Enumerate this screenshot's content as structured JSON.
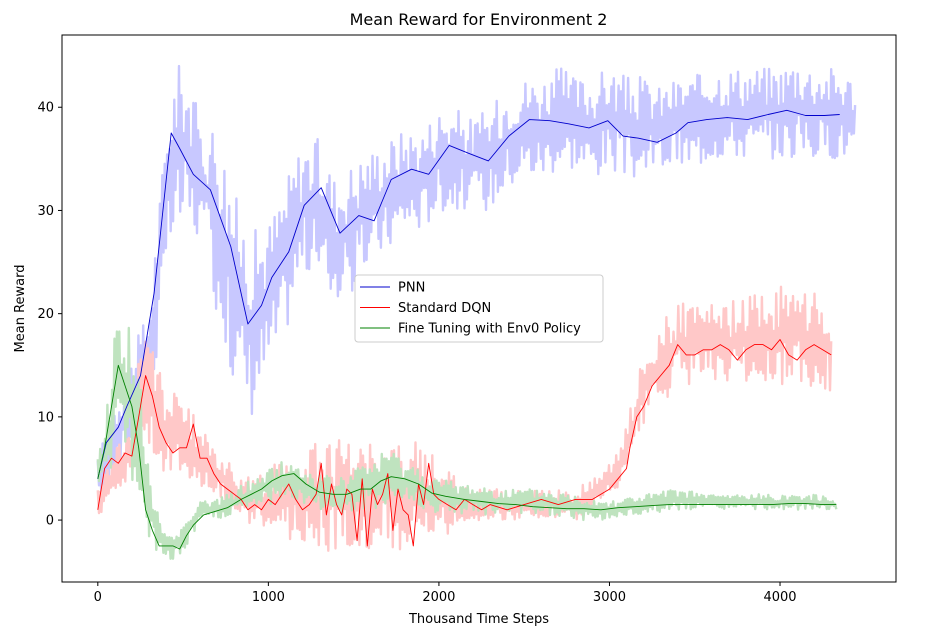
{
  "chart_data": {
    "type": "line",
    "title": "Mean Reward for Environment 2",
    "xlabel": "Thousand Time Steps",
    "ylabel": "Mean Reward",
    "xlim": [
      -210,
      4680
    ],
    "ylim": [
      -6,
      47
    ],
    "xticks": [
      0,
      1000,
      2000,
      3000,
      4000
    ],
    "yticks": [
      0,
      10,
      20,
      30,
      40
    ],
    "grid": false,
    "legend_position": "center-right",
    "series": [
      {
        "name": "PNN",
        "color": "#0000cc",
        "band_color": "#c8c8ff",
        "x": [
          0,
          50,
          120,
          170,
          250,
          330,
          430,
          480,
          560,
          660,
          780,
          880,
          960,
          1020,
          1120,
          1210,
          1310,
          1420,
          1530,
          1620,
          1720,
          1840,
          1940,
          2060,
          2180,
          2290,
          2410,
          2530,
          2650,
          2760,
          2880,
          2990,
          3080,
          3170,
          3280,
          3390,
          3460,
          3570,
          3690,
          3810,
          3930,
          4040,
          4150,
          4260,
          4350
        ],
        "y": [
          4,
          7.5,
          9,
          11,
          14,
          22,
          37.5,
          36,
          33.5,
          32,
          26.5,
          19,
          20.8,
          23.5,
          26,
          30.5,
          32.2,
          27.8,
          29.5,
          29,
          33,
          34,
          33.5,
          36.3,
          35.5,
          34.8,
          37.2,
          38.8,
          38.7,
          38.4,
          38,
          38.7,
          37.2,
          37,
          36.6,
          37.5,
          38.5,
          38.8,
          39,
          38.8,
          39.3,
          39.7,
          39.2,
          39.2,
          39.3
        ],
        "band_x": [
          0,
          100,
          200,
          300,
          430,
          500,
          600,
          700,
          800,
          900,
          1000,
          1100,
          1200,
          1300,
          1400,
          1500,
          1600,
          1700,
          1800,
          1900,
          2000,
          2100,
          2200,
          2300,
          2400,
          2500,
          2600,
          2700,
          2800,
          2900,
          3000,
          3100,
          3200,
          3300,
          3400,
          3500,
          3600,
          3700,
          3800,
          3900,
          4000,
          4100,
          4200,
          4300,
          4440
        ],
        "band_low": [
          1,
          4,
          7,
          10,
          26,
          28,
          27,
          20,
          13,
          10,
          14,
          18,
          24,
          23,
          21,
          22,
          25,
          26,
          28,
          28,
          30,
          30,
          30,
          30,
          32,
          33,
          33,
          34,
          34,
          33,
          34,
          33,
          33,
          34,
          34,
          34,
          35,
          35,
          35,
          35,
          35,
          35,
          35,
          35,
          35
        ],
        "band_high": [
          6,
          12,
          16,
          21,
          43,
          45,
          39,
          39,
          32,
          28,
          29,
          33,
          37,
          37,
          33,
          35,
          36,
          37,
          38,
          38,
          40,
          40,
          39,
          40,
          42,
          43,
          43,
          44,
          43,
          43,
          44,
          43,
          43,
          42,
          43,
          43,
          44,
          44,
          44,
          44,
          44,
          45,
          44,
          44,
          43
        ]
      },
      {
        "name": "Standard DQN",
        "color": "#ff0000",
        "band_color": "#ffc8c8",
        "x": [
          0,
          40,
          80,
          120,
          160,
          200,
          240,
          280,
          320,
          360,
          400,
          440,
          480,
          520,
          560,
          600,
          640,
          680,
          720,
          760,
          800,
          840,
          880,
          920,
          960,
          1000,
          1040,
          1080,
          1120,
          1160,
          1200,
          1240,
          1280,
          1310,
          1340,
          1370,
          1400,
          1430,
          1460,
          1490,
          1520,
          1550,
          1580,
          1610,
          1640,
          1670,
          1700,
          1730,
          1760,
          1790,
          1820,
          1850,
          1880,
          1910,
          1940,
          1970,
          2000,
          2050,
          2100,
          2150,
          2200,
          2250,
          2300,
          2400,
          2500,
          2600,
          2700,
          2800,
          2900,
          2950,
          3000,
          3050,
          3100,
          3120,
          3160,
          3200,
          3250,
          3300,
          3350,
          3400,
          3450,
          3500,
          3550,
          3600,
          3650,
          3700,
          3750,
          3800,
          3850,
          3900,
          3950,
          4000,
          4050,
          4100,
          4150,
          4200,
          4250,
          4300
        ],
        "y": [
          1,
          5,
          6,
          5.5,
          6.5,
          6.2,
          10,
          14,
          12,
          9,
          7.5,
          6.5,
          7,
          7,
          9.3,
          6,
          6,
          4.5,
          3.5,
          3,
          2.5,
          2,
          1,
          1.5,
          1,
          2,
          1.5,
          2.5,
          3.5,
          2,
          1,
          1.5,
          2.5,
          5.5,
          0.5,
          3.5,
          1.5,
          0.5,
          3,
          2.5,
          -2,
          4,
          -2.5,
          3,
          1.5,
          2.5,
          4.5,
          -1,
          3,
          1,
          0.5,
          -2.5,
          3.5,
          1.5,
          5.5,
          2.5,
          2,
          1.5,
          1,
          2,
          1.5,
          1,
          1.5,
          1,
          1.5,
          2,
          1.5,
          2,
          2,
          2.5,
          3,
          4,
          5,
          7,
          10,
          11,
          13,
          14,
          15,
          17,
          16,
          16,
          16.5,
          16.5,
          17,
          16.5,
          15.5,
          16.5,
          17,
          17,
          16.5,
          17.5,
          16,
          15.5,
          16.5,
          17,
          16.5,
          16
        ],
        "band_x": [
          0,
          100,
          200,
          240,
          300,
          400,
          500,
          600,
          700,
          800,
          900,
          1000,
          1100,
          1200,
          1300,
          1400,
          1500,
          1600,
          1700,
          1800,
          1900,
          2000,
          2100,
          2200,
          2300,
          2400,
          2500,
          2600,
          2700,
          2800,
          2900,
          3000,
          3100,
          3200,
          3300,
          3400,
          3500,
          3600,
          3700,
          3800,
          3900,
          4000,
          4100,
          4200,
          4300
        ],
        "band_low": [
          0,
          3,
          4,
          6,
          7,
          4,
          4,
          3,
          2,
          1,
          -1,
          -1,
          -2,
          -2,
          -3,
          -3,
          -3,
          -3,
          -3,
          -3,
          -3,
          -2,
          -1,
          0,
          0,
          0,
          0,
          0,
          0,
          0,
          1,
          2,
          4,
          9,
          11,
          13,
          13,
          13,
          13,
          13,
          13,
          13,
          13,
          13,
          12
        ],
        "band_high": [
          3,
          7,
          9,
          16,
          19,
          13,
          12,
          9,
          7,
          5,
          4,
          5,
          6,
          6,
          8,
          8,
          8,
          8,
          8,
          7,
          8,
          6,
          4,
          3,
          3,
          3,
          3,
          3,
          3,
          3,
          4,
          6,
          9,
          17,
          19,
          21,
          21,
          21,
          21,
          22,
          22,
          23,
          23,
          22,
          21
        ]
      },
      {
        "name": "Fine Tuning with Env0 Policy",
        "color": "#008000",
        "band_color": "#bfe3bf",
        "x": [
          0,
          40,
          80,
          120,
          160,
          200,
          240,
          280,
          320,
          360,
          400,
          440,
          480,
          520,
          560,
          620,
          680,
          760,
          840,
          900,
          960,
          1020,
          1080,
          1150,
          1220,
          1300,
          1380,
          1460,
          1540,
          1600,
          1660,
          1720,
          1800,
          1880,
          1960,
          2040,
          2150,
          2250,
          2350,
          2450,
          2550,
          2650,
          2750,
          2850,
          2950,
          3050,
          3150,
          3250,
          3350,
          3450,
          3550,
          3650,
          3750,
          3850,
          3950,
          4050,
          4150,
          4250,
          4330
        ],
        "y": [
          4,
          7,
          11,
          15,
          13,
          11,
          7,
          1,
          -1,
          -2.5,
          -2.5,
          -2.5,
          -2.8,
          -1.5,
          -0.5,
          0.5,
          0.8,
          1.2,
          2,
          2.5,
          3,
          3.8,
          4.3,
          4.5,
          3.5,
          2.7,
          2.5,
          2.5,
          3,
          3,
          3.8,
          4.2,
          4,
          3.5,
          2.6,
          2.3,
          2,
          1.8,
          1.6,
          1.5,
          1.3,
          1.2,
          1.1,
          1.1,
          1.0,
          1.2,
          1.3,
          1.4,
          1.5,
          1.5,
          1.5,
          1.5,
          1.5,
          1.5,
          1.5,
          1.6,
          1.6,
          1.5,
          1.5
        ],
        "band_x": [
          0,
          60,
          120,
          180,
          240,
          300,
          360,
          420,
          480,
          540,
          600,
          700,
          800,
          900,
          1000,
          1100,
          1200,
          1300,
          1400,
          1500,
          1600,
          1700,
          1800,
          1900,
          2000,
          2200,
          2400,
          2600,
          2800,
          3000,
          3200,
          3400,
          3600,
          3800,
          4000,
          4200,
          4330
        ],
        "band_low": [
          2,
          4,
          7,
          5,
          1,
          -3,
          -3.5,
          -4,
          -3.5,
          -2,
          0,
          0,
          0.5,
          1,
          1.5,
          2,
          1.5,
          1,
          0.5,
          0.5,
          1,
          1.5,
          1.5,
          1,
          0.5,
          0.5,
          0.5,
          0.5,
          0,
          0,
          0.5,
          1,
          1,
          1,
          1,
          1,
          1
        ],
        "band_high": [
          6,
          12,
          22,
          20,
          15,
          5,
          0,
          -1,
          -1,
          1,
          2,
          2,
          3,
          4,
          5,
          6,
          5,
          4.5,
          4,
          5,
          6,
          7,
          6,
          5,
          4,
          3.5,
          3,
          3,
          2.5,
          2,
          2.5,
          3,
          2.5,
          2.5,
          2.5,
          2.5,
          2
        ]
      }
    ]
  }
}
